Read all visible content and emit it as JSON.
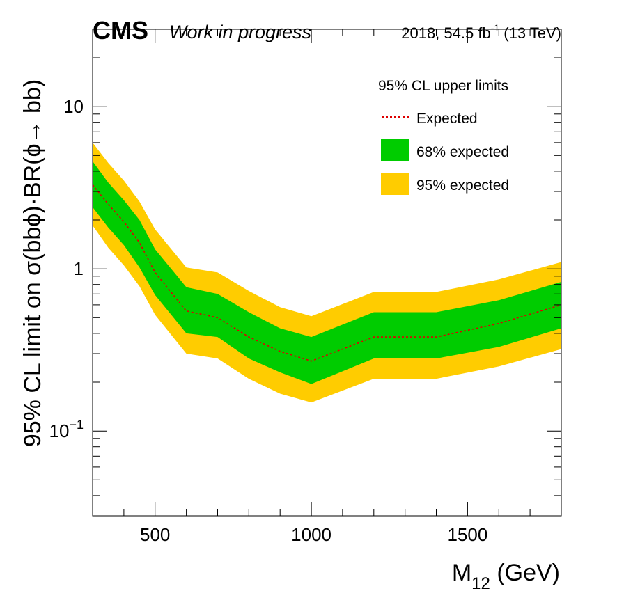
{
  "header": {
    "experiment": "CMS",
    "status": "Work in progress",
    "lumi_prefix": "2018, 54.5 fb",
    "lumi_exp": "-1",
    "lumi_suffix": " (13 TeV)"
  },
  "chart_data": {
    "type": "area",
    "x_title_main": "M",
    "x_title_sub": "12",
    "x_title_unit": " (GeV)",
    "y_title": "95% CL limit on  σ(bbϕ)·BR(ϕ→ bb)",
    "xlim": [
      300,
      1800
    ],
    "ylim": [
      0.03,
      30
    ],
    "y_scale": "log",
    "x_ticks": [
      {
        "value": 500,
        "label": "500"
      },
      {
        "value": 1000,
        "label": "1000"
      },
      {
        "value": 1500,
        "label": "1500"
      }
    ],
    "y_ticks": [
      {
        "value": 0.1,
        "mantissa": "10",
        "exponent": "−1"
      },
      {
        "value": 1,
        "mantissa": "1",
        "exponent": ""
      },
      {
        "value": 10,
        "mantissa": "10",
        "exponent": ""
      }
    ],
    "legend": {
      "title": "95% CL upper limits",
      "position": "top-right",
      "entries": [
        "Expected",
        "68% expected",
        "95% expected"
      ]
    },
    "colors": {
      "expected": "#dd0000",
      "band68": "#00cc00",
      "band95": "#ffcc00"
    },
    "mass": [
      300,
      350,
      400,
      450,
      500,
      600,
      700,
      800,
      900,
      1000,
      1200,
      1400,
      1600,
      1800
    ],
    "series": [
      {
        "name": "Expected",
        "values": [
          3.3,
          2.5,
          1.95,
          1.45,
          0.95,
          0.55,
          0.5,
          0.38,
          0.31,
          0.27,
          0.38,
          0.38,
          0.46,
          0.6
        ]
      },
      {
        "name": "68% expected",
        "role": "band",
        "low": [
          2.4,
          1.8,
          1.4,
          1.02,
          0.69,
          0.4,
          0.38,
          0.28,
          0.23,
          0.195,
          0.28,
          0.28,
          0.33,
          0.43
        ],
        "high": [
          4.6,
          3.4,
          2.65,
          2.0,
          1.32,
          0.77,
          0.7,
          0.54,
          0.43,
          0.38,
          0.54,
          0.54,
          0.64,
          0.83
        ]
      },
      {
        "name": "95% expected",
        "role": "band",
        "low": [
          1.85,
          1.35,
          1.05,
          0.78,
          0.52,
          0.3,
          0.28,
          0.21,
          0.17,
          0.15,
          0.21,
          0.21,
          0.25,
          0.32
        ],
        "high": [
          6.0,
          4.5,
          3.5,
          2.6,
          1.75,
          1.02,
          0.95,
          0.73,
          0.58,
          0.51,
          0.72,
          0.72,
          0.86,
          1.1
        ]
      }
    ]
  }
}
